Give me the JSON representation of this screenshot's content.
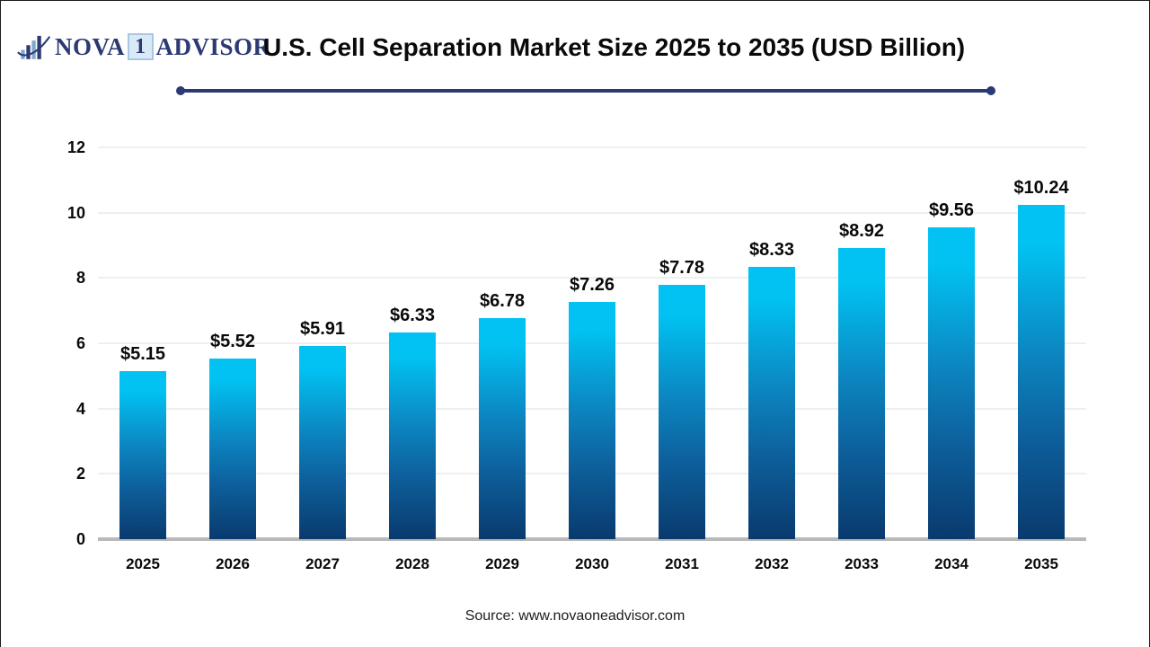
{
  "brand": {
    "nova": "NOVA",
    "badge": "1",
    "advisor": "ADVISOR",
    "icon": "bar-chart-swoosh-icon",
    "navy": "#2b3a72",
    "light_blue": "#7fa8cf"
  },
  "header": {
    "title": "U.S. Cell Separation Market Size 2025 to 2035 (USD Billion)"
  },
  "footer": {
    "source": "Source: www.novaoneadvisor.com"
  },
  "chart_data": {
    "type": "bar",
    "title": "U.S. Cell Separation Market Size 2025 to 2035 (USD Billion)",
    "categories": [
      "2025",
      "2026",
      "2027",
      "2028",
      "2029",
      "2030",
      "2031",
      "2032",
      "2033",
      "2034",
      "2035"
    ],
    "values": [
      5.15,
      5.52,
      5.91,
      6.33,
      6.78,
      7.26,
      7.78,
      8.33,
      8.92,
      9.56,
      10.24
    ],
    "value_labels": [
      "$5.15",
      "$5.52",
      "$5.91",
      "$6.33",
      "$6.78",
      "$7.26",
      "$7.78",
      "$8.33",
      "$8.92",
      "$9.56",
      "$10.24"
    ],
    "xlabel": "",
    "ylabel": "",
    "ylim": [
      0,
      12
    ],
    "yticks": [
      0,
      2,
      4,
      6,
      8,
      10,
      12
    ],
    "grid": true,
    "legend": "none",
    "bar_gradient_top": "#01c2f2",
    "bar_gradient_bottom": "#093a6e",
    "axis_line_color": "#b9b9b9",
    "gridline_color": "#efefef"
  }
}
